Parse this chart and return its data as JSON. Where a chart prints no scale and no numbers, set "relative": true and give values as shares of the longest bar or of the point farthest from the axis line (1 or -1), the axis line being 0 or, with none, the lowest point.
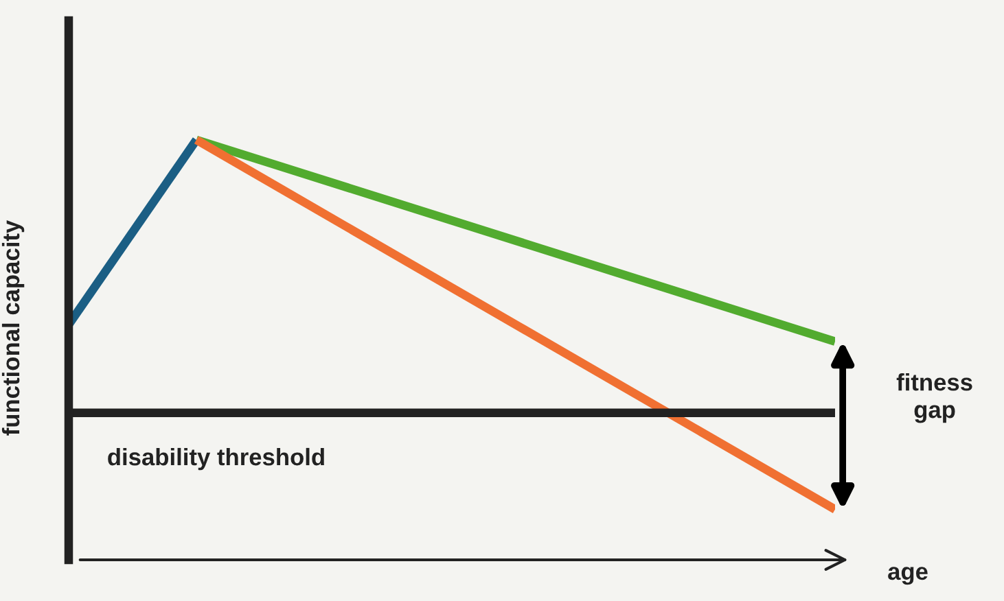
{
  "chart_data": {
    "type": "line",
    "relative": true,
    "ylabel": "functional capacity",
    "xlabel": "age",
    "categories": [
      null,
      null,
      null,
      null,
      null,
      null,
      null
    ],
    "series": [
      {
        "color": "#1b5e84",
        "values": [
          0.56,
          1,
          null,
          null,
          null,
          null,
          null
        ]
      },
      {
        "color": "#52ab2f",
        "values": [
          null,
          1,
          null,
          null,
          null,
          null,
          0.52
        ]
      },
      {
        "color": "#f07032",
        "values": [
          null,
          1,
          null,
          null,
          null,
          null,
          0.12
        ]
      }
    ],
    "ref_lines": [
      {
        "axis": "y",
        "value": 0.35,
        "label": "disability threshold",
        "color": "#222222",
        "line_style": "solid"
      }
    ],
    "annotations": [
      "fitness gap"
    ],
    "legend": false,
    "marker": "none",
    "line_style": "solid"
  }
}
